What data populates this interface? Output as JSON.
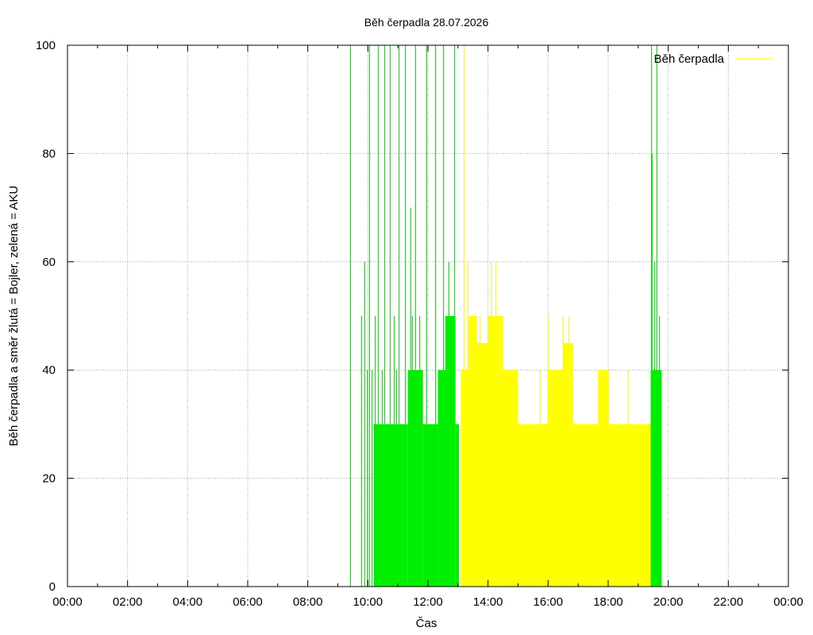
{
  "chart_data": {
    "type": "area",
    "title": "Běh čerpadla 28.07.2026",
    "xlabel": "Čas",
    "ylabel": "Běh čerpadla a směr žlutá = Bojler, zelená = AKU",
    "xlim": [
      "00:00",
      "24:00"
    ],
    "ylim": [
      0,
      100
    ],
    "x_ticks": [
      "00:00",
      "02:00",
      "04:00",
      "06:00",
      "08:00",
      "10:00",
      "12:00",
      "14:00",
      "16:00",
      "18:00",
      "20:00",
      "22:00",
      "00:00"
    ],
    "y_ticks": [
      "0",
      "20",
      "40",
      "60",
      "80",
      "100"
    ],
    "grid": true,
    "legend": {
      "position": "top-right",
      "entries": [
        {
          "label": "Běh čerpadla",
          "color": "#ffff00"
        }
      ]
    },
    "colors": {
      "bojler": "#ffff00",
      "aku": "#00ee00"
    },
    "series": [
      {
        "name": "Běh čerpadla",
        "color": "#ffff00",
        "segments": [
          {
            "from": "13:06",
            "to": "13:22",
            "value": 40
          },
          {
            "from": "13:22",
            "to": "13:38",
            "value": 50
          },
          {
            "from": "13:38",
            "to": "14:00",
            "value": 45
          },
          {
            "from": "14:00",
            "to": "14:30",
            "value": 50
          },
          {
            "from": "14:30",
            "to": "15:00",
            "value": 40
          },
          {
            "from": "15:00",
            "to": "15:40",
            "value": 30
          },
          {
            "from": "15:40",
            "to": "16:00",
            "value": 30
          },
          {
            "from": "16:00",
            "to": "16:20",
            "value": 40
          },
          {
            "from": "16:20",
            "to": "16:30",
            "value": 40
          },
          {
            "from": "16:30",
            "to": "16:50",
            "value": 45
          },
          {
            "from": "16:50",
            "to": "17:40",
            "value": 30
          },
          {
            "from": "17:40",
            "to": "18:00",
            "value": 40
          },
          {
            "from": "18:00",
            "to": "19:25",
            "value": 30
          }
        ],
        "spikes": [
          {
            "t": "13:12",
            "value": 100
          },
          {
            "t": "13:20",
            "value": 60
          },
          {
            "t": "13:43",
            "value": 50
          },
          {
            "t": "14:05",
            "value": 60
          },
          {
            "t": "14:15",
            "value": 60
          },
          {
            "t": "15:43",
            "value": 40
          },
          {
            "t": "16:00",
            "value": 50
          },
          {
            "t": "16:30",
            "value": 50
          },
          {
            "t": "16:40",
            "value": 50
          },
          {
            "t": "18:00",
            "value": 40
          },
          {
            "t": "18:40",
            "value": 40
          }
        ]
      },
      {
        "name": "AKU",
        "color": "#00ee00",
        "segments": [
          {
            "from": "10:12",
            "to": "11:20",
            "value": 30
          },
          {
            "from": "11:20",
            "to": "11:50",
            "value": 40
          },
          {
            "from": "11:50",
            "to": "12:20",
            "value": 30
          },
          {
            "from": "12:20",
            "to": "12:35",
            "value": 40
          },
          {
            "from": "12:35",
            "to": "12:55",
            "value": 50
          },
          {
            "from": "12:55",
            "to": "13:02",
            "value": 30
          },
          {
            "from": "19:25",
            "to": "19:47",
            "value": 40
          }
        ],
        "spikes": [
          {
            "t": "09:24",
            "value": 100
          },
          {
            "t": "09:47",
            "value": 50
          },
          {
            "t": "09:53",
            "value": 60
          },
          {
            "t": "09:58",
            "value": 40
          },
          {
            "t": "10:03",
            "value": 100
          },
          {
            "t": "10:07",
            "value": 40
          },
          {
            "t": "10:14",
            "value": 50
          },
          {
            "t": "10:20",
            "value": 100
          },
          {
            "t": "10:28",
            "value": 40
          },
          {
            "t": "10:33",
            "value": 100
          },
          {
            "t": "10:44",
            "value": 100
          },
          {
            "t": "10:52",
            "value": 50
          },
          {
            "t": "10:56",
            "value": 40
          },
          {
            "t": "11:02",
            "value": 100
          },
          {
            "t": "11:14",
            "value": 100
          },
          {
            "t": "11:25",
            "value": 70
          },
          {
            "t": "11:28",
            "value": 50
          },
          {
            "t": "11:35",
            "value": 100
          },
          {
            "t": "11:42",
            "value": 50
          },
          {
            "t": "11:57",
            "value": 100
          },
          {
            "t": "12:15",
            "value": 100
          },
          {
            "t": "12:30",
            "value": 100
          },
          {
            "t": "12:42",
            "value": 60
          },
          {
            "t": "12:53",
            "value": 100
          },
          {
            "t": "19:25",
            "value": 100
          },
          {
            "t": "19:28",
            "value": 80
          },
          {
            "t": "19:32",
            "value": 60
          },
          {
            "t": "19:37",
            "value": 100
          },
          {
            "t": "19:42",
            "value": 50
          }
        ]
      }
    ]
  }
}
